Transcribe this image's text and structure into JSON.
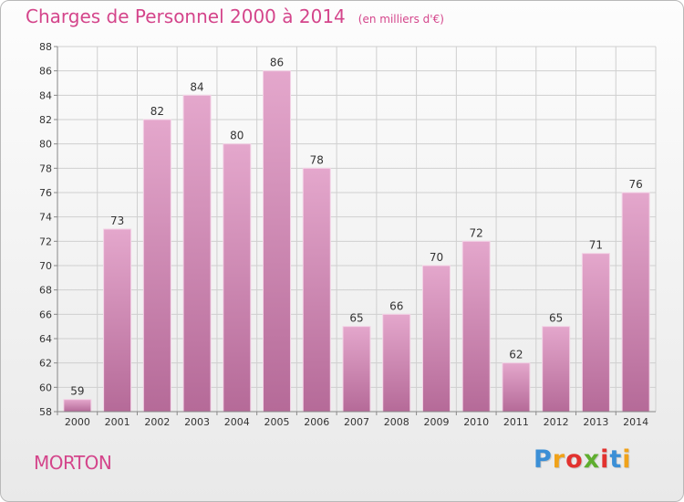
{
  "header": {
    "title": "Charges de Personnel 2000 à 2014",
    "subtitle": "(en milliers d'€)"
  },
  "footer": {
    "commune": "MORTON",
    "logo_letters": [
      "P",
      "r",
      "o",
      "x",
      "i",
      "t",
      "i"
    ],
    "logo_colors": [
      "#3b8fd6",
      "#f0a21a",
      "#e2322f",
      "#5fae2f",
      "#e2322f",
      "#3b8fd6",
      "#f0a21a"
    ]
  },
  "colors": {
    "bar_top": "#e4a7cc",
    "bar_bottom": "#b56a98",
    "grid": "#cfcfcf",
    "title": "#d4458b"
  },
  "chart_data": {
    "type": "bar",
    "title": "Charges de Personnel 2000 à 2014",
    "subtitle": "(en milliers d'€)",
    "xlabel": "",
    "ylabel": "",
    "categories": [
      "2000",
      "2001",
      "2002",
      "2003",
      "2004",
      "2005",
      "2006",
      "2007",
      "2008",
      "2009",
      "2010",
      "2011",
      "2012",
      "2013",
      "2014"
    ],
    "values": [
      59,
      73,
      82,
      84,
      80,
      86,
      78,
      65,
      66,
      70,
      72,
      62,
      65,
      71,
      76
    ],
    "ylim": [
      58,
      88
    ],
    "yticks": [
      58,
      60,
      62,
      64,
      66,
      68,
      70,
      72,
      74,
      76,
      78,
      80,
      82,
      84,
      86,
      88
    ],
    "grid": true,
    "data_labels": true
  }
}
